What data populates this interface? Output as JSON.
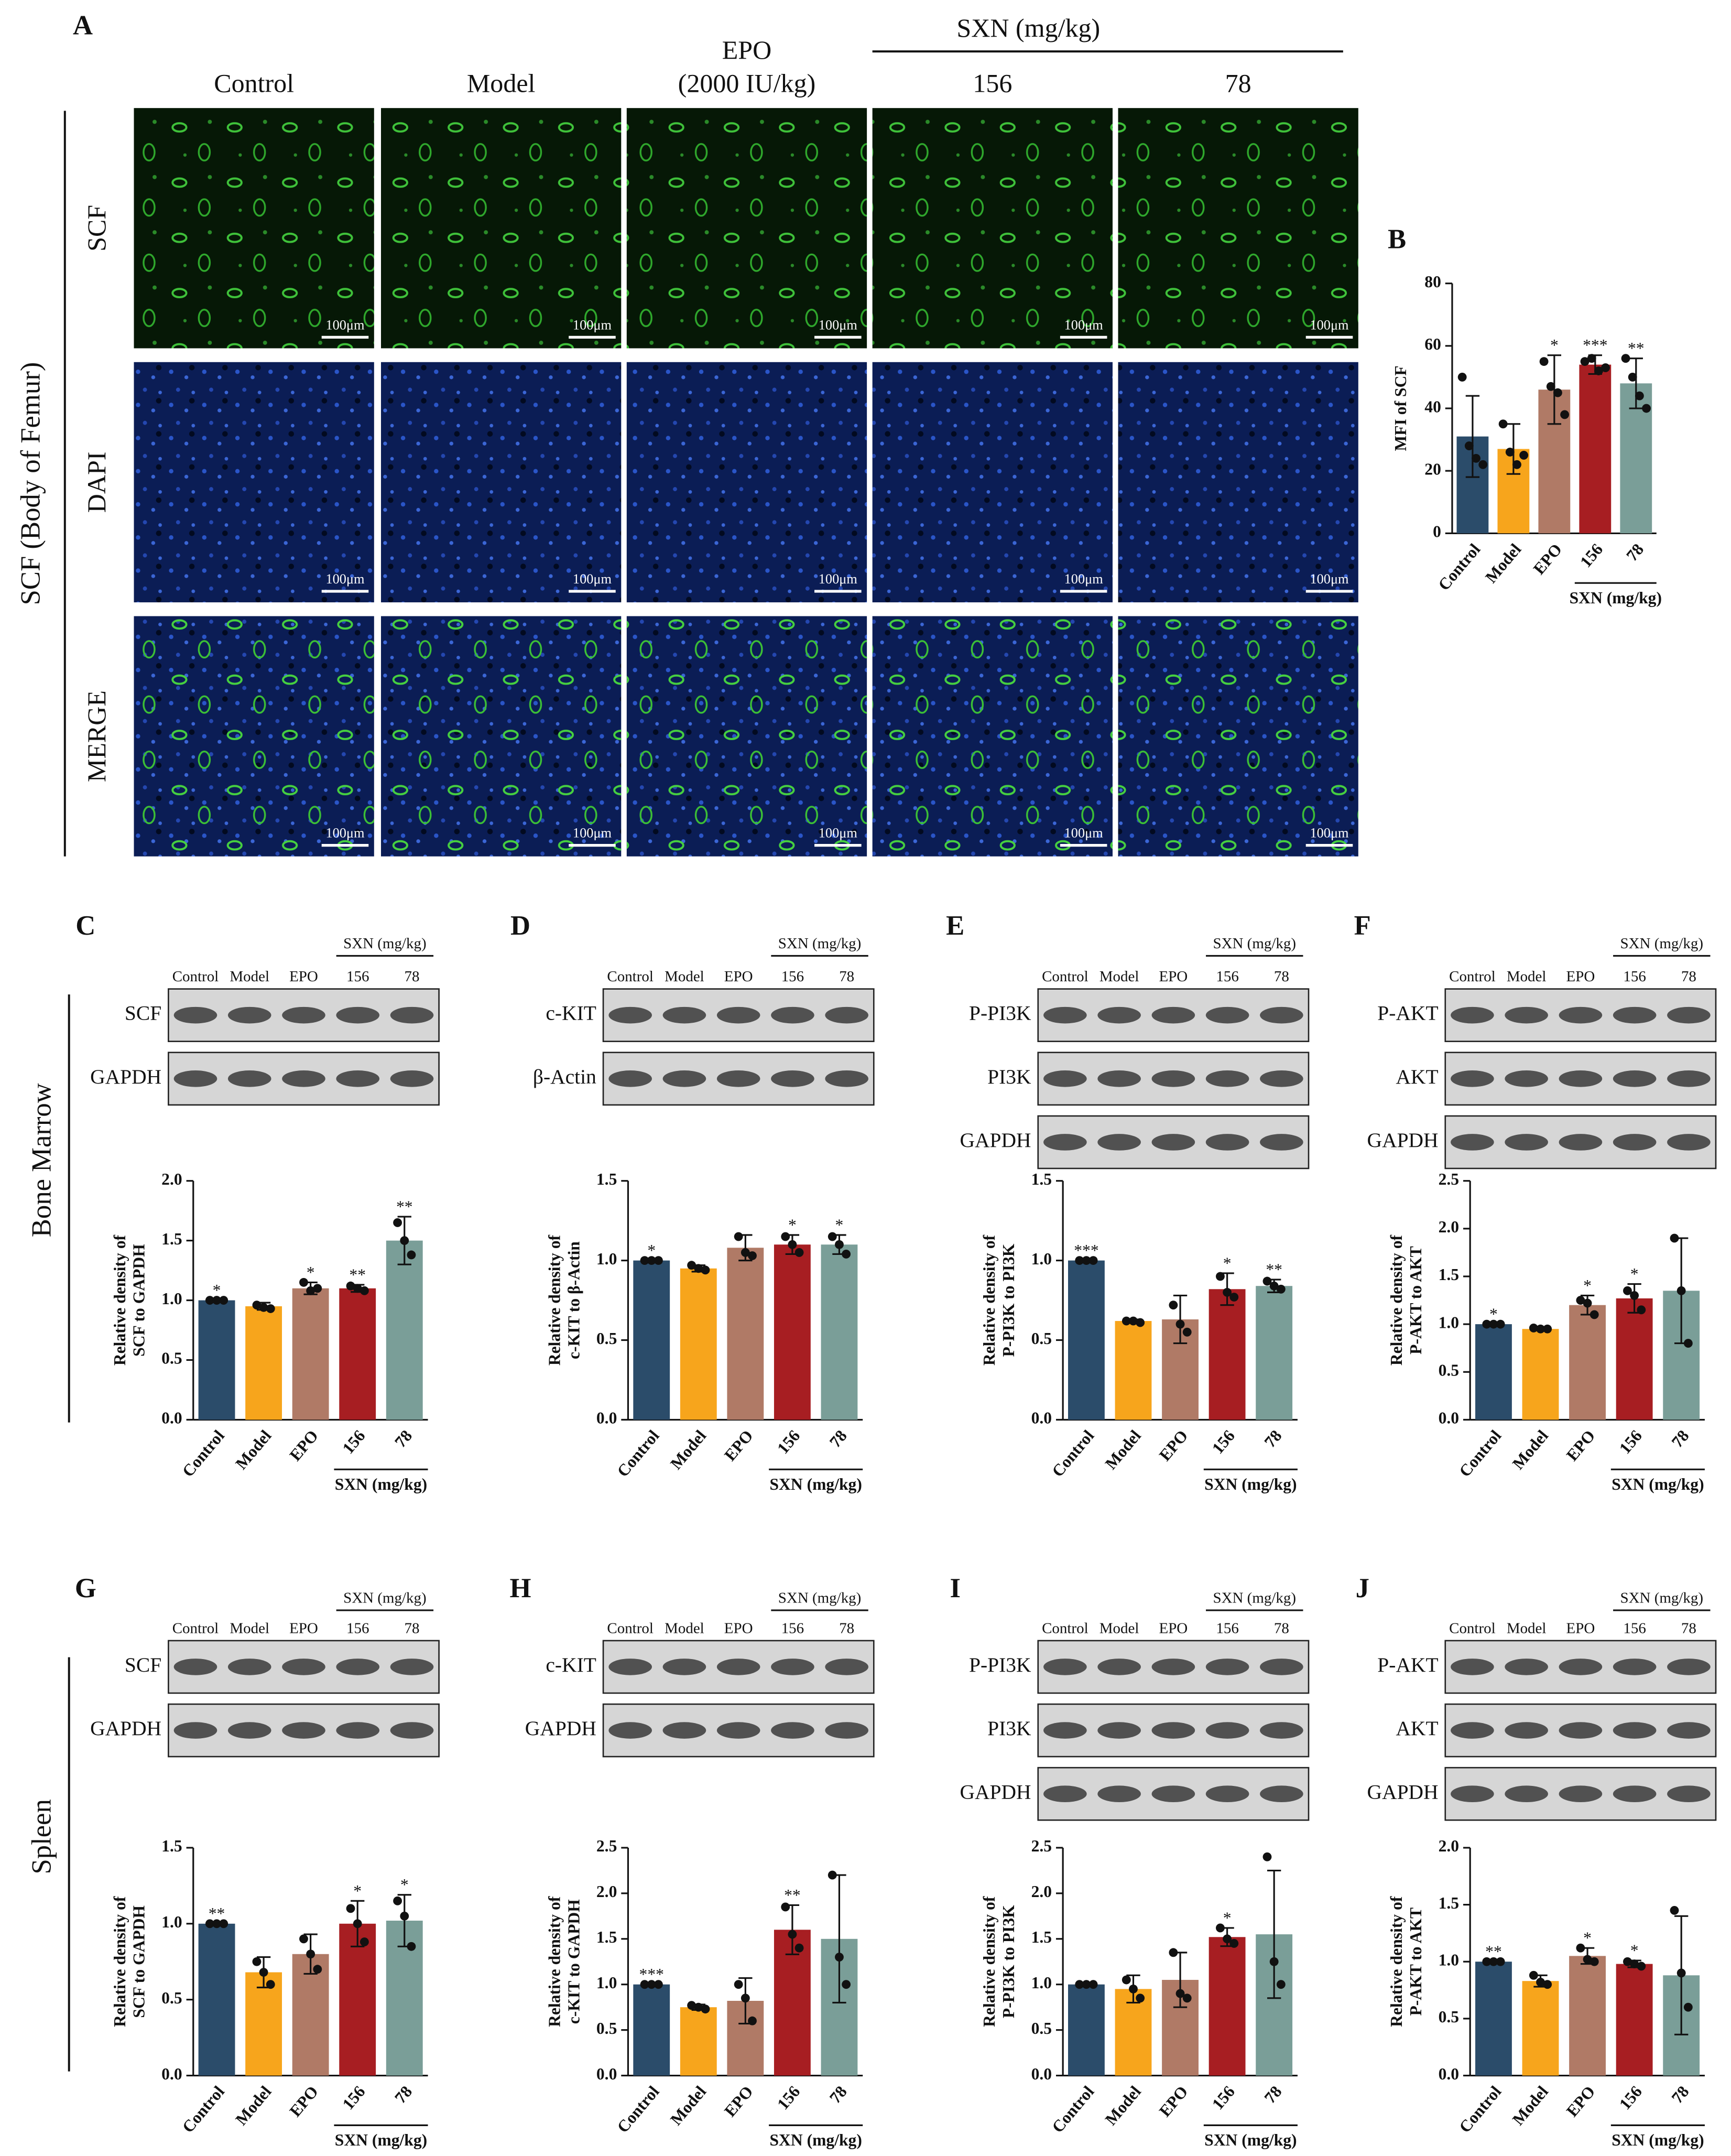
{
  "panel_a": {
    "panel": "A",
    "columns": [
      "Control",
      "Model",
      "EPO",
      "156",
      "78"
    ],
    "epo_dose": "(2000 IU/kg)",
    "group_label": "SXN (mg/kg)",
    "rows": [
      "SCF",
      "DAPI",
      "MERGE"
    ],
    "side_label": "SCF  (Body of Femur)",
    "scale_bar": "100μm"
  },
  "side_labels": [
    "Bone Marrow",
    "Spleen"
  ],
  "chart_data": [
    {
      "type": "bar",
      "panel": "B",
      "ylabel": [
        "MFI of SCF"
      ],
      "categories": [
        "Control",
        "Model",
        "EPO",
        "156",
        "78"
      ],
      "group_label": "SXN (mg/kg)",
      "colors": [
        "#2b4c6a",
        "#f7a51c",
        "#b07a66",
        "#a71e22",
        "#7a9e98"
      ],
      "values": [
        31,
        27,
        46,
        54,
        48
      ],
      "errors": [
        13,
        8,
        11,
        3,
        8
      ],
      "points": [
        [
          50,
          28,
          24,
          22
        ],
        [
          35,
          26,
          22,
          25
        ],
        [
          55,
          47,
          45,
          38
        ],
        [
          55,
          56,
          52,
          53
        ],
        [
          56,
          50,
          44,
          40
        ]
      ],
      "significance": [
        null,
        null,
        "*",
        "***",
        "**"
      ],
      "ylim": [
        0,
        80
      ],
      "yticks": [
        0,
        20,
        40,
        60,
        80
      ]
    },
    {
      "type": "bar",
      "panel": "C",
      "ylabel": [
        "Relative density of",
        "SCF to GAPDH"
      ],
      "blot_rows": [
        "SCF",
        "GAPDH"
      ],
      "categories": [
        "Control",
        "Model",
        "EPO",
        "156",
        "78"
      ],
      "group_label": "SXN (mg/kg)",
      "colors": [
        "#2b4c6a",
        "#f7a51c",
        "#b07a66",
        "#a71e22",
        "#7a9e98"
      ],
      "values": [
        1.0,
        0.95,
        1.1,
        1.1,
        1.5
      ],
      "errors": [
        0,
        0.03,
        0.05,
        0.03,
        0.2
      ],
      "points": [
        [
          1.0,
          1.0,
          1.0
        ],
        [
          0.96,
          0.94,
          0.93
        ],
        [
          1.15,
          1.08,
          1.1
        ],
        [
          1.12,
          1.1,
          1.08
        ],
        [
          1.65,
          1.5,
          1.38
        ]
      ],
      "significance": [
        "*",
        null,
        "*",
        "**",
        "**"
      ],
      "ylim": [
        0,
        2.0
      ],
      "yticks": [
        {
          "value": 0,
          "label": "0.0"
        },
        {
          "value": 0.5,
          "label": "0.5"
        },
        {
          "value": 1,
          "label": "1.0"
        },
        {
          "value": 1.5,
          "label": "1.5"
        },
        {
          "value": 2,
          "label": "2.0"
        }
      ]
    },
    {
      "type": "bar",
      "panel": "D",
      "ylabel": [
        "Relative density of",
        "c-KIT to β-Actin"
      ],
      "blot_rows": [
        "c-KIT",
        "β-Actin"
      ],
      "categories": [
        "Control",
        "Model",
        "EPO",
        "156",
        "78"
      ],
      "group_label": "SXN (mg/kg)",
      "colors": [
        "#2b4c6a",
        "#f7a51c",
        "#b07a66",
        "#a71e22",
        "#7a9e98"
      ],
      "values": [
        1.0,
        0.95,
        1.08,
        1.1,
        1.1
      ],
      "errors": [
        0,
        0.02,
        0.08,
        0.06,
        0.06
      ],
      "points": [
        [
          1.0,
          1.0,
          1.0
        ],
        [
          0.97,
          0.95,
          0.94
        ],
        [
          1.15,
          1.05,
          1.03
        ],
        [
          1.15,
          1.1,
          1.05
        ],
        [
          1.15,
          1.1,
          1.04
        ]
      ],
      "significance": [
        "*",
        null,
        null,
        "*",
        "*"
      ],
      "ylim": [
        0,
        1.5
      ],
      "yticks": [
        {
          "value": 0,
          "label": "0.0"
        },
        {
          "value": 0.5,
          "label": "0.5"
        },
        {
          "value": 1,
          "label": "1.0"
        },
        {
          "value": 1.5,
          "label": "1.5"
        }
      ]
    },
    {
      "type": "bar",
      "panel": "E",
      "ylabel": [
        "Relative density of",
        "P-PI3K to PI3K"
      ],
      "blot_rows": [
        "P-PI3K",
        "PI3K",
        "GAPDH"
      ],
      "categories": [
        "Control",
        "Model",
        "EPO",
        "156",
        "78"
      ],
      "group_label": "SXN (mg/kg)",
      "colors": [
        "#2b4c6a",
        "#f7a51c",
        "#b07a66",
        "#a71e22",
        "#7a9e98"
      ],
      "values": [
        1.0,
        0.62,
        0.63,
        0.82,
        0.84
      ],
      "errors": [
        0,
        0.01,
        0.15,
        0.1,
        0.04
      ],
      "points": [
        [
          1.0,
          1.0,
          1.0
        ],
        [
          0.62,
          0.62,
          0.61
        ],
        [
          0.72,
          0.6,
          0.55
        ],
        [
          0.9,
          0.8,
          0.77
        ],
        [
          0.87,
          0.84,
          0.82
        ]
      ],
      "significance": [
        "***",
        null,
        null,
        "*",
        "**"
      ],
      "ylim": [
        0,
        1.5
      ],
      "yticks": [
        {
          "value": 0,
          "label": "0.0"
        },
        {
          "value": 0.5,
          "label": "0.5"
        },
        {
          "value": 1,
          "label": "1.0"
        },
        {
          "value": 1.5,
          "label": "1.5"
        }
      ]
    },
    {
      "type": "bar",
      "panel": "F",
      "ylabel": [
        "Relative density of",
        "P-AKT to AKT"
      ],
      "blot_rows": [
        "P-AKT",
        "AKT",
        "GAPDH"
      ],
      "categories": [
        "Control",
        "Model",
        "EPO",
        "156",
        "78"
      ],
      "group_label": "SXN (mg/kg)",
      "colors": [
        "#2b4c6a",
        "#f7a51c",
        "#b07a66",
        "#a71e22",
        "#7a9e98"
      ],
      "values": [
        1.0,
        0.95,
        1.2,
        1.27,
        1.35
      ],
      "errors": [
        0,
        0.01,
        0.1,
        0.15,
        0.55
      ],
      "points": [
        [
          1.0,
          1.0,
          1.0
        ],
        [
          0.96,
          0.95,
          0.95
        ],
        [
          1.25,
          1.22,
          1.1
        ],
        [
          1.35,
          1.3,
          1.15
        ],
        [
          1.9,
          1.35,
          0.8
        ]
      ],
      "significance": [
        "*",
        null,
        "*",
        "*",
        null
      ],
      "ylim": [
        0,
        2.5
      ],
      "yticks": [
        {
          "value": 0,
          "label": "0.0"
        },
        {
          "value": 0.5,
          "label": "0.5"
        },
        {
          "value": 1,
          "label": "1.0"
        },
        {
          "value": 1.5,
          "label": "1.5"
        },
        {
          "value": 2,
          "label": "2.0"
        },
        {
          "value": 2.5,
          "label": "2.5"
        }
      ]
    },
    {
      "type": "bar",
      "panel": "G",
      "ylabel": [
        "Relative density of",
        "SCF to GAPDH"
      ],
      "blot_rows": [
        "SCF",
        "GAPDH"
      ],
      "categories": [
        "Control",
        "Model",
        "EPO",
        "156",
        "78"
      ],
      "group_label": "SXN (mg/kg)",
      "colors": [
        "#2b4c6a",
        "#f7a51c",
        "#b07a66",
        "#a71e22",
        "#7a9e98"
      ],
      "values": [
        1.0,
        0.68,
        0.8,
        1.0,
        1.02
      ],
      "errors": [
        0,
        0.1,
        0.13,
        0.15,
        0.17
      ],
      "points": [
        [
          1.0,
          1.0,
          1.0
        ],
        [
          0.75,
          0.68,
          0.6
        ],
        [
          0.9,
          0.8,
          0.7
        ],
        [
          1.1,
          1.0,
          0.88
        ],
        [
          1.15,
          1.05,
          0.85
        ]
      ],
      "significance": [
        "**",
        null,
        null,
        "*",
        "*"
      ],
      "ylim": [
        0,
        1.5
      ],
      "yticks": [
        {
          "value": 0,
          "label": "0.0"
        },
        {
          "value": 0.5,
          "label": "0.5"
        },
        {
          "value": 1,
          "label": "1.0"
        },
        {
          "value": 1.5,
          "label": "1.5"
        }
      ]
    },
    {
      "type": "bar",
      "panel": "H",
      "ylabel": [
        "Relative density of",
        "c-KIT to GAPDH"
      ],
      "blot_rows": [
        "c-KIT",
        "GAPDH"
      ],
      "categories": [
        "Control",
        "Model",
        "EPO",
        "156",
        "78"
      ],
      "group_label": "SXN (mg/kg)",
      "colors": [
        "#2b4c6a",
        "#f7a51c",
        "#b07a66",
        "#a71e22",
        "#7a9e98"
      ],
      "values": [
        1.0,
        0.75,
        0.82,
        1.6,
        1.5
      ],
      "errors": [
        0,
        0.03,
        0.25,
        0.27,
        0.7
      ],
      "points": [
        [
          1.0,
          1.0,
          1.0
        ],
        [
          0.77,
          0.75,
          0.73
        ],
        [
          1.0,
          0.85,
          0.6
        ],
        [
          1.85,
          1.55,
          1.4
        ],
        [
          2.2,
          1.3,
          1.0
        ]
      ],
      "significance": [
        "***",
        null,
        null,
        "**",
        null
      ],
      "ylim": [
        0,
        2.5
      ],
      "yticks": [
        {
          "value": 0,
          "label": "0.0"
        },
        {
          "value": 0.5,
          "label": "0.5"
        },
        {
          "value": 1,
          "label": "1.0"
        },
        {
          "value": 1.5,
          "label": "1.5"
        },
        {
          "value": 2,
          "label": "2.0"
        },
        {
          "value": 2.5,
          "label": "2.5"
        }
      ]
    },
    {
      "type": "bar",
      "panel": "I",
      "ylabel": [
        "Relative density of",
        "P-PI3K to PI3K"
      ],
      "blot_rows": [
        "P-PI3K",
        "PI3K",
        "GAPDH"
      ],
      "categories": [
        "Control",
        "Model",
        "EPO",
        "156",
        "78"
      ],
      "group_label": "SXN (mg/kg)",
      "colors": [
        "#2b4c6a",
        "#f7a51c",
        "#b07a66",
        "#a71e22",
        "#7a9e98"
      ],
      "values": [
        1.0,
        0.95,
        1.05,
        1.52,
        1.55
      ],
      "errors": [
        0,
        0.15,
        0.3,
        0.1,
        0.7
      ],
      "points": [
        [
          1.0,
          1.0,
          1.0
        ],
        [
          1.05,
          0.95,
          0.85
        ],
        [
          1.35,
          0.9,
          0.85
        ],
        [
          1.62,
          1.5,
          1.45
        ],
        [
          2.4,
          1.25,
          1.0
        ]
      ],
      "significance": [
        null,
        null,
        null,
        "*",
        null
      ],
      "ylim": [
        0,
        2.5
      ],
      "yticks": [
        {
          "value": 0,
          "label": "0.0"
        },
        {
          "value": 0.5,
          "label": "0.5"
        },
        {
          "value": 1,
          "label": "1.0"
        },
        {
          "value": 1.5,
          "label": "1.5"
        },
        {
          "value": 2,
          "label": "2.0"
        },
        {
          "value": 2.5,
          "label": "2.5"
        }
      ]
    },
    {
      "type": "bar",
      "panel": "J",
      "ylabel": [
        "Relative density of",
        "P-AKT to AKT"
      ],
      "blot_rows": [
        "P-AKT",
        "AKT",
        "GAPDH"
      ],
      "categories": [
        "Control",
        "Model",
        "EPO",
        "156",
        "78"
      ],
      "group_label": "SXN (mg/kg)",
      "colors": [
        "#2b4c6a",
        "#f7a51c",
        "#b07a66",
        "#a71e22",
        "#7a9e98"
      ],
      "values": [
        1.0,
        0.83,
        1.05,
        0.98,
        0.88
      ],
      "errors": [
        0,
        0.05,
        0.07,
        0.03,
        0.52
      ],
      "points": [
        [
          1.0,
          1.0,
          1.0
        ],
        [
          0.88,
          0.82,
          0.8
        ],
        [
          1.12,
          1.02,
          1.0
        ],
        [
          1.0,
          0.98,
          0.96
        ],
        [
          1.45,
          0.9,
          0.6
        ]
      ],
      "significance": [
        "**",
        null,
        "*",
        "*",
        null
      ],
      "ylim": [
        0,
        2.0
      ],
      "yticks": [
        {
          "value": 0,
          "label": "0.0"
        },
        {
          "value": 0.5,
          "label": "0.5"
        },
        {
          "value": 1,
          "label": "1.0"
        },
        {
          "value": 1.5,
          "label": "1.5"
        },
        {
          "value": 2,
          "label": "2.0"
        }
      ]
    }
  ]
}
